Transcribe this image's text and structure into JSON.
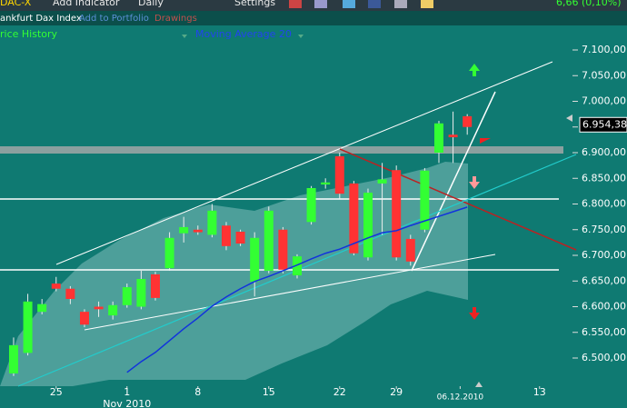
{
  "toolbar": {
    "symbol": "DAC-X",
    "add_indicator": "Add Indicator",
    "interval": "Daily",
    "settings": "Settings",
    "change": "6,66 (0,10%)"
  },
  "subbar": {
    "name": "ankfurt Dax Index",
    "portfolio": "Add to Portfolio",
    "drawings": "Drawings"
  },
  "chart_data": {
    "type": "candlestick",
    "legend": [
      "rice History",
      "Moving Average 20"
    ],
    "open": [
      6470,
      6510,
      6590,
      6645,
      6635,
      6590,
      6600,
      6583,
      6603,
      6600,
      6663,
      6675,
      6743,
      6750,
      6740,
      6758,
      6746,
      6649,
      6670,
      6750,
      6661,
      6765,
      6838,
      6893,
      6840,
      6696,
      6840,
      6866,
      6732,
      6750,
      6900,
      6935,
      6971
    ],
    "high": [
      6540,
      6625,
      6615,
      6658,
      6640,
      6595,
      6610,
      6610,
      6645,
      6670,
      6668,
      6745,
      6775,
      6758,
      6800,
      6765,
      6750,
      6745,
      6795,
      6755,
      6702,
      6835,
      6850,
      6900,
      6845,
      6830,
      6880,
      6875,
      6740,
      6870,
      6962,
      6980,
      6975
    ],
    "low": [
      6465,
      6505,
      6585,
      6630,
      6605,
      6560,
      6580,
      6575,
      6598,
      6595,
      6612,
      6670,
      6725,
      6740,
      6735,
      6710,
      6718,
      6620,
      6665,
      6665,
      6655,
      6760,
      6830,
      6810,
      6700,
      6690,
      6740,
      6690,
      6680,
      6745,
      6880,
      6880,
      6935
    ],
    "close": [
      6525,
      6610,
      6605,
      6635,
      6615,
      6565,
      6595,
      6603,
      6638,
      6654,
      6617,
      6734,
      6755,
      6745,
      6787,
      6718,
      6723,
      6734,
      6787,
      6672,
      6698,
      6831,
      6842,
      6820,
      6704,
      6822,
      6848,
      6696,
      6688,
      6865,
      6957,
      6930,
      6950
    ],
    "up_color": "#33ff33",
    "down_color": "#ff3333",
    "series": [
      {
        "name": "Moving Average 20",
        "color": "#1133dd",
        "values": [
          null,
          null,
          null,
          null,
          null,
          null,
          null,
          null,
          6472,
          6493,
          6511,
          6534,
          6557,
          6578,
          6601,
          6619,
          6635,
          6649,
          6659,
          6670,
          6681,
          6693,
          6704,
          6712,
          6723,
          6734,
          6744,
          6748,
          6758,
          6767,
          6776,
          6785,
          6794
        ]
      }
    ],
    "xlim": [
      -0.96,
      43.27
    ],
    "xticks": [
      {
        "value": 3,
        "label": "25"
      },
      {
        "value": 8,
        "label": "1"
      },
      {
        "value": 13,
        "label": "8"
      },
      {
        "value": 18,
        "label": "15"
      },
      {
        "value": 23,
        "label": "22"
      },
      {
        "value": 27,
        "label": "29"
      },
      {
        "value": 31.5,
        "label": "06.12.2010"
      },
      {
        "value": 37.1,
        "label": "13"
      }
    ],
    "month_label": "Nov 2010",
    "ylim": [
      6441,
      7119
    ],
    "yticks": [
      {
        "value": 6500,
        "label": "6.500,00"
      },
      {
        "value": 6550,
        "label": "6.550,00"
      },
      {
        "value": 6600,
        "label": "6.600,00"
      },
      {
        "value": 6650,
        "label": "6.650,00"
      },
      {
        "value": 6700,
        "label": "6.700,00"
      },
      {
        "value": 6750,
        "label": "6.750,00"
      },
      {
        "value": 6800,
        "label": "6.800,00"
      },
      {
        "value": 6850,
        "label": "6.850,00"
      },
      {
        "value": 6900,
        "label": "6.900,00"
      },
      {
        "value": 6950,
        "label": "6.950,00"
      },
      {
        "value": 7000,
        "label": "7.000,00"
      },
      {
        "value": 7050,
        "label": "7.050,00"
      },
      {
        "value": 7100,
        "label": "7.100,00"
      }
    ],
    "last_price": 6954.38,
    "last_price_label": "6.954,38"
  }
}
